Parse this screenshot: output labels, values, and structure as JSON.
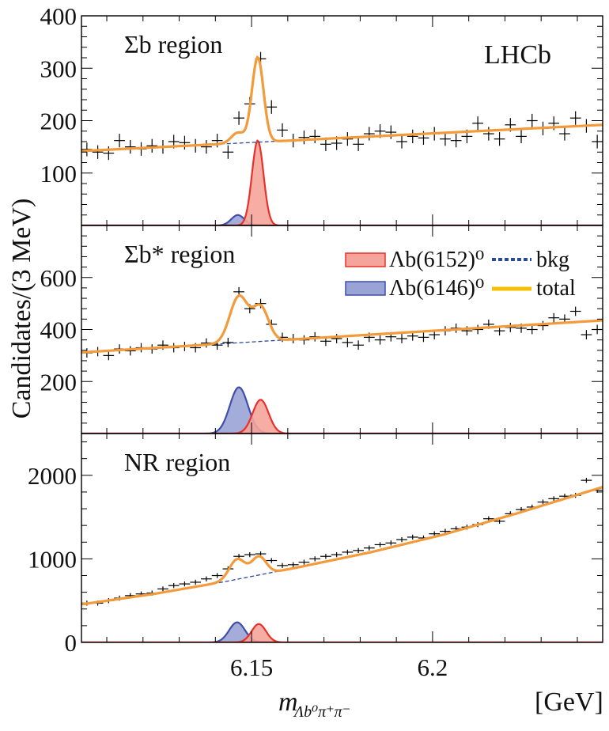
{
  "experiment_label": "LHCb",
  "y_axis_label": "Candidates/(3 MeV)",
  "x_axis_label": {
    "main": "m",
    "sub": "Λb⁰π⁺π⁻"
  },
  "x_unit": "[GeV]",
  "legend": [
    {
      "label": "Λb(6152)⁰",
      "kind": "filled",
      "color": "#e8312a",
      "fill": "#f4a49a"
    },
    {
      "label": "bkg",
      "kind": "dashed",
      "color": "#2b4a9a"
    },
    {
      "label": "Λb(6146)⁰",
      "kind": "filled",
      "color": "#3f4fa8",
      "fill": "#9aa3d6"
    },
    {
      "label": "total",
      "kind": "solid",
      "color": "#f5c000"
    }
  ],
  "colors": {
    "total_curve": "#f39a3a",
    "bkg": "#2b4a9a",
    "peak_6152_line": "#e8312a",
    "peak_6152_fill": "#f4a49a",
    "peak_6146_line": "#3f4fa8",
    "peak_6146_fill": "#9aa3d6"
  },
  "chart_data": [
    {
      "type": "line",
      "region_label": "Σb region",
      "xlim": [
        6.103,
        6.247
      ],
      "ylim": [
        0,
        400
      ],
      "yticks": [
        100,
        200,
        300,
        400
      ],
      "xtick_labels": [],
      "bkg": {
        "x": [
          6.103,
          6.247
        ],
        "y": [
          142,
          192
        ]
      },
      "peaks": [
        {
          "name": "Λb(6152)⁰",
          "mu": 6.1517,
          "sigma": 0.0016,
          "amp": 162
        },
        {
          "name": "Λb(6146)⁰",
          "mu": 6.1462,
          "sigma": 0.0018,
          "amp": 20
        }
      ],
      "points": {
        "x": [
          6.1045,
          6.1075,
          6.1105,
          6.1135,
          6.1165,
          6.1195,
          6.1225,
          6.1255,
          6.1285,
          6.1315,
          6.1345,
          6.1375,
          6.1405,
          6.1435,
          6.1465,
          6.1495,
          6.1525,
          6.1555,
          6.1585,
          6.1615,
          6.1645,
          6.1675,
          6.1705,
          6.1735,
          6.1765,
          6.1795,
          6.1825,
          6.1855,
          6.1885,
          6.1915,
          6.1945,
          6.1975,
          6.2005,
          6.2035,
          6.2065,
          6.2095,
          6.2125,
          6.2155,
          6.2185,
          6.2215,
          6.2245,
          6.2275,
          6.2305,
          6.2335,
          6.2365,
          6.2395,
          6.2425,
          6.2455
        ],
        "y": [
          145,
          140,
          138,
          162,
          150,
          146,
          152,
          150,
          160,
          158,
          152,
          150,
          162,
          140,
          205,
          232,
          318,
          226,
          182,
          162,
          168,
          170,
          155,
          157,
          165,
          155,
          175,
          180,
          178,
          160,
          170,
          167,
          175,
          165,
          162,
          170,
          195,
          175,
          165,
          192,
          170,
          200,
          185,
          195,
          175,
          205,
          190,
          160
        ],
        "err": 13
      }
    },
    {
      "type": "line",
      "region_label": "Σb* region",
      "xlim": [
        6.103,
        6.247
      ],
      "ylim": [
        0,
        800
      ],
      "yticks": [
        200,
        400,
        600
      ],
      "xtick_labels": [],
      "bkg": {
        "x": [
          6.103,
          6.247
        ],
        "y": [
          312,
          435
        ]
      },
      "peaks": [
        {
          "name": "Λb(6152)⁰",
          "mu": 6.1525,
          "sigma": 0.0022,
          "amp": 130
        },
        {
          "name": "Λb(6146)⁰",
          "mu": 6.1465,
          "sigma": 0.0025,
          "amp": 178
        }
      ],
      "points": {
        "x": [
          6.1045,
          6.1075,
          6.1105,
          6.1135,
          6.1165,
          6.1195,
          6.1225,
          6.1255,
          6.1285,
          6.1315,
          6.1345,
          6.1375,
          6.1405,
          6.1435,
          6.1465,
          6.1495,
          6.1525,
          6.1555,
          6.1585,
          6.1615,
          6.1645,
          6.1675,
          6.1705,
          6.1735,
          6.1765,
          6.1795,
          6.1825,
          6.1855,
          6.1885,
          6.1915,
          6.1945,
          6.1975,
          6.2005,
          6.2035,
          6.2065,
          6.2095,
          6.2125,
          6.2155,
          6.2185,
          6.2215,
          6.2245,
          6.2275,
          6.2305,
          6.2335,
          6.2365,
          6.2395,
          6.2425,
          6.2455
        ],
        "y": [
          310,
          315,
          300,
          325,
          318,
          330,
          325,
          340,
          330,
          335,
          330,
          348,
          340,
          350,
          545,
          480,
          500,
          420,
          370,
          365,
          360,
          372,
          355,
          365,
          350,
          340,
          370,
          360,
          372,
          365,
          375,
          370,
          380,
          395,
          405,
          395,
          400,
          420,
          395,
          408,
          405,
          400,
          415,
          445,
          440,
          470,
          380,
          400
        ],
        "err": 18
      }
    },
    {
      "type": "line",
      "region_label": "NR region",
      "xlim": [
        6.103,
        6.247
      ],
      "ylim": [
        0,
        2500
      ],
      "yticks": [
        0,
        1000,
        2000
      ],
      "xtick_labels": [
        "6.15",
        "6.2"
      ],
      "xticks": [
        6.15,
        6.2
      ],
      "bkg": {
        "x": [
          6.103,
          6.123,
          6.143,
          6.163,
          6.183,
          6.203,
          6.223,
          6.247
        ],
        "y": [
          455,
          580,
          730,
          900,
          1080,
          1290,
          1540,
          1860
        ]
      },
      "peaks": [
        {
          "name": "Λb(6152)⁰",
          "mu": 6.152,
          "sigma": 0.002,
          "amp": 220
        },
        {
          "name": "Λb(6146)⁰",
          "mu": 6.146,
          "sigma": 0.0022,
          "amp": 240
        }
      ],
      "points": {
        "x": [
          6.1045,
          6.1075,
          6.1105,
          6.1135,
          6.1165,
          6.1195,
          6.1225,
          6.1255,
          6.1285,
          6.1315,
          6.1345,
          6.1375,
          6.1405,
          6.1435,
          6.1465,
          6.1495,
          6.1525,
          6.1555,
          6.1585,
          6.1615,
          6.1645,
          6.1675,
          6.1705,
          6.1735,
          6.1765,
          6.1795,
          6.1825,
          6.1855,
          6.1885,
          6.1915,
          6.1945,
          6.1975,
          6.2005,
          6.2035,
          6.2065,
          6.2095,
          6.2125,
          6.2155,
          6.2185,
          6.2215,
          6.2245,
          6.2275,
          6.2305,
          6.2335,
          6.2365,
          6.2395,
          6.2425,
          6.2455
        ],
        "y": [
          470,
          470,
          500,
          530,
          560,
          580,
          590,
          640,
          680,
          700,
          720,
          760,
          800,
          880,
          1030,
          1050,
          1060,
          980,
          920,
          930,
          960,
          1000,
          1030,
          1050,
          1080,
          1100,
          1130,
          1170,
          1190,
          1230,
          1260,
          1250,
          1300,
          1330,
          1360,
          1380,
          1410,
          1480,
          1450,
          1540,
          1590,
          1620,
          1680,
          1720,
          1750,
          1760,
          1940,
          1820
        ],
        "err": 30
      }
    }
  ]
}
